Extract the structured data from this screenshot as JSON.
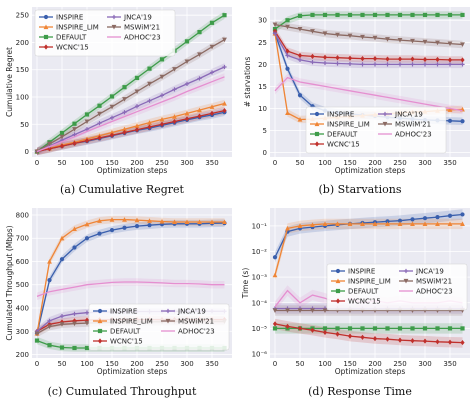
{
  "captions": [
    "(a) Cumulative Regret",
    "(b) Starvations",
    "(c) Cumulated Throughput",
    "(d) Response Time"
  ],
  "legend_entries": [
    "INSPIRE",
    "INSPIRE_LIM",
    "DEFAULT",
    "WCNC'15",
    "JNCA'19",
    "MSWiM'21",
    "ADHOC'23"
  ],
  "colors": {
    "INSPIRE": "#3a5fad",
    "INSPIRE_LIM": "#ef8536",
    "DEFAULT": "#3e9c4a",
    "WCNC'15": "#c0302c",
    "JNCA'19": "#8a6ab7",
    "MSWiM'21": "#8b6a63",
    "ADHOC'23": "#e58fd0",
    "panel_bg": "#eaeaf2",
    "grid": "#ffffff"
  },
  "chart_data": [
    {
      "type": "line",
      "caption": "(a) Cumulative Regret",
      "xlabel": "Optimization steps",
      "ylabel": "Cumulative Regret",
      "xlim": [
        -10,
        390
      ],
      "ylim": [
        -10,
        265
      ],
      "xticks": [
        0,
        50,
        100,
        150,
        200,
        250,
        300,
        350
      ],
      "yticks": [
        0,
        50,
        100,
        150,
        200,
        250
      ],
      "grid": true,
      "legend_position": "upper-left",
      "legend_columns": 2,
      "x": [
        0,
        25,
        50,
        75,
        100,
        125,
        150,
        175,
        200,
        225,
        250,
        275,
        300,
        325,
        350,
        375
      ],
      "series": [
        {
          "name": "INSPIRE",
          "values": [
            0,
            5,
            10,
            15,
            19,
            24,
            29,
            34,
            39,
            43,
            48,
            53,
            58,
            63,
            67,
            72
          ]
        },
        {
          "name": "INSPIRE_LIM",
          "values": [
            0,
            6,
            12,
            17,
            23,
            29,
            35,
            41,
            47,
            53,
            59,
            64,
            70,
            76,
            82,
            88
          ]
        },
        {
          "name": "DEFAULT",
          "values": [
            0,
            17,
            34,
            51,
            68,
            84,
            101,
            118,
            135,
            152,
            169,
            185,
            202,
            219,
            236,
            250
          ]
        },
        {
          "name": "WCNC'15",
          "values": [
            0,
            5,
            10,
            15,
            20,
            25,
            30,
            35,
            40,
            45,
            50,
            55,
            60,
            65,
            70,
            75
          ]
        },
        {
          "name": "JNCA'19",
          "values": [
            0,
            10,
            21,
            31,
            41,
            52,
            62,
            72,
            83,
            93,
            103,
            114,
            124,
            134,
            145,
            155
          ]
        },
        {
          "name": "MSWiM'21",
          "values": [
            0,
            14,
            27,
            41,
            55,
            69,
            82,
            96,
            110,
            124,
            137,
            151,
            165,
            178,
            192,
            205
          ]
        },
        {
          "name": "ADHOC'23",
          "values": [
            0,
            9,
            18,
            27,
            37,
            46,
            55,
            64,
            73,
            82,
            91,
            100,
            110,
            119,
            128,
            137
          ]
        }
      ]
    },
    {
      "type": "line",
      "caption": "(b) Starvations",
      "xlabel": "Optimization steps",
      "ylabel": "# starvations",
      "xlim": [
        -10,
        390
      ],
      "ylim": [
        -1,
        33
      ],
      "xticks": [
        0,
        50,
        100,
        150,
        200,
        250,
        300,
        350
      ],
      "yticks": [
        0,
        5,
        10,
        15,
        20,
        25,
        30
      ],
      "grid": true,
      "legend_position": "lower-center",
      "legend_columns": 2,
      "x": [
        0,
        25,
        50,
        75,
        100,
        125,
        150,
        175,
        200,
        225,
        250,
        275,
        300,
        325,
        350,
        375
      ],
      "series": [
        {
          "name": "INSPIRE",
          "values": [
            27,
            19,
            13,
            10.5,
            9.5,
            9,
            8.8,
            8.5,
            8.3,
            8,
            7.8,
            7.6,
            7.4,
            7.3,
            7.2,
            7.1
          ]
        },
        {
          "name": "INSPIRE_LIM",
          "values": [
            27,
            9,
            7.5,
            7.6,
            7.8,
            8,
            8.2,
            8.4,
            8.6,
            8.8,
            9,
            9.2,
            9.3,
            9.5,
            9.7,
            9.8
          ]
        },
        {
          "name": "DEFAULT",
          "values": [
            28,
            30,
            31,
            31.2,
            31.2,
            31.2,
            31.2,
            31.2,
            31.2,
            31.2,
            31.2,
            31.2,
            31.2,
            31.2,
            31.2,
            31.2
          ]
        },
        {
          "name": "WCNC'15",
          "values": [
            27.5,
            23,
            22,
            21.8,
            21.6,
            21.5,
            21.4,
            21.3,
            21.3,
            21.2,
            21.2,
            21.2,
            21.1,
            21.1,
            21,
            21
          ]
        },
        {
          "name": "JNCA'19",
          "values": [
            27,
            22,
            21,
            20.5,
            20.3,
            20.2,
            20.1,
            20,
            20,
            20,
            20,
            20,
            20,
            20,
            20,
            20
          ]
        },
        {
          "name": "MSWiM'21",
          "values": [
            29,
            28.5,
            28,
            27.5,
            27,
            26.7,
            26.5,
            26.2,
            26,
            25.7,
            25.5,
            25.3,
            25.1,
            24.9,
            24.7,
            24.5
          ]
        },
        {
          "name": "ADHOC'23",
          "values": [
            14,
            17,
            16,
            15.5,
            15,
            14.5,
            14,
            13.5,
            13,
            12.5,
            12,
            11.5,
            11,
            10.5,
            10,
            9.5
          ]
        }
      ]
    },
    {
      "type": "line",
      "caption": "(c) Cumulated Throughput",
      "xlabel": "Optimization steps",
      "ylabel": "Cumulated Throughput (Mbps)",
      "xlim": [
        -10,
        390
      ],
      "ylim": [
        185,
        830
      ],
      "xticks": [
        0,
        50,
        100,
        150,
        200,
        250,
        300,
        350
      ],
      "yticks": [
        200,
        300,
        400,
        500,
        600,
        700,
        800
      ],
      "grid": true,
      "legend_position": "lower-right",
      "legend_columns": 2,
      "x": [
        0,
        25,
        50,
        75,
        100,
        125,
        150,
        175,
        200,
        225,
        250,
        275,
        300,
        325,
        350,
        375
      ],
      "series": [
        {
          "name": "INSPIRE",
          "values": [
            290,
            520,
            610,
            660,
            700,
            720,
            735,
            745,
            752,
            756,
            760,
            762,
            762,
            762,
            764,
            765
          ]
        },
        {
          "name": "INSPIRE_LIM",
          "values": [
            290,
            600,
            700,
            740,
            760,
            775,
            780,
            780,
            778,
            775,
            772,
            770,
            770,
            770,
            770,
            770
          ]
        },
        {
          "name": "DEFAULT",
          "values": [
            260,
            240,
            230,
            228,
            228,
            228,
            228,
            228,
            228,
            228,
            228,
            228,
            228,
            228,
            228,
            228
          ]
        },
        {
          "name": "WCNC'15",
          "values": [
            300,
            330,
            340,
            345,
            348,
            350,
            350,
            350,
            350,
            350,
            350,
            350,
            350,
            350,
            350,
            350
          ]
        },
        {
          "name": "JNCA'19",
          "values": [
            300,
            345,
            365,
            375,
            380,
            382,
            383,
            384,
            385,
            385,
            385,
            386,
            386,
            386,
            386,
            386
          ]
        },
        {
          "name": "MSWiM'21",
          "values": [
            290,
            320,
            330,
            333,
            335,
            337,
            338,
            340,
            340,
            341,
            341,
            342,
            342,
            342,
            342,
            342
          ]
        },
        {
          "name": "ADHOC'23",
          "values": [
            450,
            470,
            480,
            490,
            500,
            505,
            510,
            512,
            512,
            510,
            508,
            505,
            505,
            503,
            500,
            500
          ]
        }
      ]
    },
    {
      "type": "line",
      "caption": "(d) Response Time",
      "xlabel": "Optimization steps",
      "ylabel": "Time (s)",
      "yscale": "log",
      "xlim": [
        -10,
        390
      ],
      "ylim": [
        7e-07,
        0.5
      ],
      "xticks": [
        0,
        50,
        100,
        150,
        200,
        250,
        300,
        350
      ],
      "yticks": [
        1e-06,
        1e-05,
        0.0001,
        0.001,
        0.01,
        0.1
      ],
      "ytick_labels": [
        "10⁻⁶",
        "10⁻⁵",
        "10⁻⁴",
        "10⁻³",
        "10⁻²",
        "10⁻¹"
      ],
      "grid": true,
      "legend_position": "center-right",
      "legend_columns": 2,
      "x": [
        0,
        25,
        50,
        75,
        100,
        125,
        150,
        175,
        200,
        225,
        250,
        275,
        300,
        325,
        350,
        375
      ],
      "series": [
        {
          "name": "INSPIRE",
          "values": [
            0.006,
            0.06,
            0.08,
            0.09,
            0.1,
            0.11,
            0.12,
            0.13,
            0.14,
            0.15,
            0.16,
            0.18,
            0.2,
            0.22,
            0.25,
            0.28
          ]
        },
        {
          "name": "INSPIRE_LIM",
          "values": [
            0.0012,
            0.08,
            0.1,
            0.11,
            0.12,
            0.12,
            0.12,
            0.12,
            0.12,
            0.12,
            0.12,
            0.12,
            0.12,
            0.12,
            0.12,
            0.12
          ]
        },
        {
          "name": "DEFAULT",
          "values": [
            1e-05,
            1e-05,
            1e-05,
            1e-05,
            1e-05,
            1e-05,
            1e-05,
            1e-05,
            1e-05,
            1e-05,
            1e-05,
            1e-05,
            1e-05,
            1e-05,
            1e-05,
            1e-05
          ]
        },
        {
          "name": "WCNC'15",
          "values": [
            1.5e-05,
            1.2e-05,
            1e-05,
            8.5e-06,
            7e-06,
            6e-06,
            5e-06,
            4.5e-06,
            4e-06,
            3.8e-06,
            3.5e-06,
            3.3e-06,
            3.2e-06,
            3e-06,
            2.9e-06,
            2.8e-06
          ]
        },
        {
          "name": "JNCA'19",
          "values": [
            6e-05,
            6e-05,
            6e-05,
            6e-05,
            6e-05,
            6e-05,
            6e-05,
            6e-05,
            6e-05,
            6e-05,
            6e-05,
            6e-05,
            6e-05,
            6e-05,
            6e-05,
            6e-05
          ]
        },
        {
          "name": "MSWiM'21",
          "values": [
            5e-05,
            5e-05,
            5e-05,
            5e-05,
            5e-05,
            5e-05,
            5e-05,
            5e-05,
            5e-05,
            5e-05,
            5e-05,
            5e-05,
            5e-05,
            5e-05,
            5e-05,
            5e-05
          ]
        },
        {
          "name": "ADHOC'23",
          "values": [
            7e-05,
            0.0003,
            0.0001,
            0.0002,
            0.00015,
            0.0001,
            0.00015,
            0.0001,
            0.00012,
            0.0001,
            0.00012,
            0.0001,
            0.0001,
            0.0001,
            0.00012,
            0.0001
          ]
        }
      ]
    }
  ]
}
